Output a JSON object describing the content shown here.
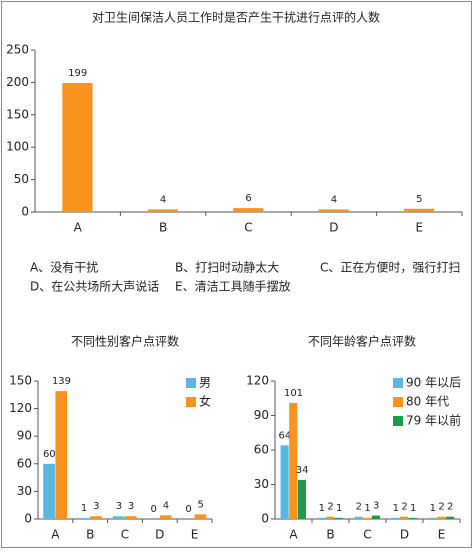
{
  "chart_data": [
    {
      "type": "bar",
      "title": "对卫生间保洁人员工作时是否产生干扰进行点评的人数",
      "categories": [
        "A",
        "B",
        "C",
        "D",
        "E"
      ],
      "series": [
        {
          "color": "#f7931e",
          "values": [
            199,
            4,
            6,
            4,
            5
          ]
        }
      ],
      "ylim": [
        0,
        250
      ],
      "yticks": [
        0,
        50,
        100,
        150,
        200,
        250
      ],
      "annotations": [
        "A、没有干扰",
        "B、打扫时动静太大",
        "C、正在方便时，强行打扫",
        "D、在公共场所大声说话",
        "E、清洁工具随手摆放"
      ]
    },
    {
      "type": "bar",
      "title": "不同性别客户点评数",
      "categories": [
        "A",
        "B",
        "C",
        "D",
        "E"
      ],
      "series": [
        {
          "name": "男",
          "color": "#5bb6e0",
          "values": [
            60,
            1,
            3,
            0,
            0
          ]
        },
        {
          "name": "女",
          "color": "#f7931e",
          "values": [
            139,
            3,
            3,
            4,
            5
          ]
        }
      ],
      "ylim": [
        0,
        150
      ],
      "yticks": [
        0,
        30,
        60,
        90,
        120,
        150
      ]
    },
    {
      "type": "bar",
      "title": "不同年龄客户点评数",
      "categories": [
        "A",
        "B",
        "C",
        "D",
        "E"
      ],
      "series": [
        {
          "name": "90 年以后",
          "color": "#5bb6e0",
          "values": [
            64,
            1,
            2,
            1,
            1
          ]
        },
        {
          "name": "80 年代",
          "color": "#f7931e",
          "values": [
            101,
            2,
            1,
            2,
            2
          ]
        },
        {
          "name": "79 年以前",
          "color": "#1a9a4a",
          "values": [
            34,
            1,
            3,
            1,
            2
          ]
        }
      ],
      "ylim": [
        0,
        120
      ],
      "yticks": [
        0,
        30,
        60,
        90,
        120
      ]
    }
  ]
}
